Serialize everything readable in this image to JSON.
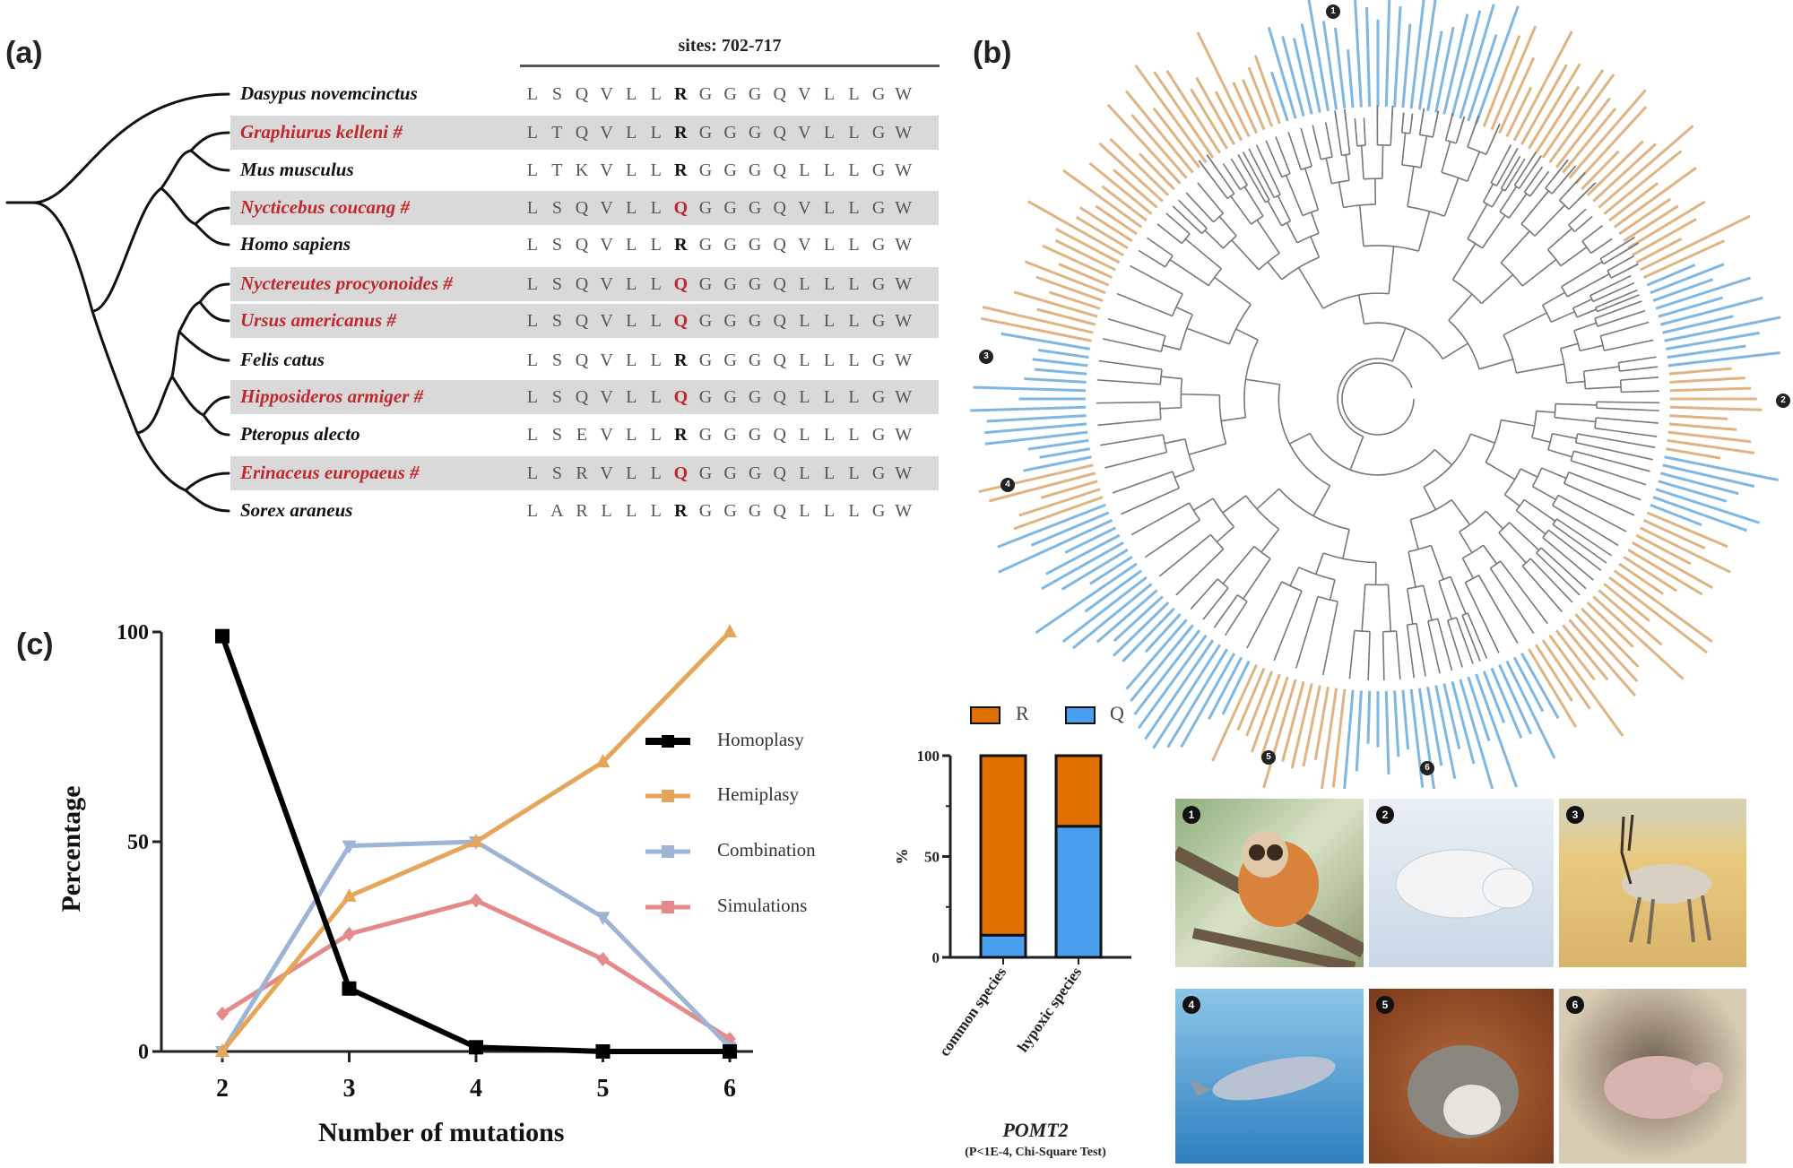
{
  "panels": {
    "a": "(a)",
    "b": "(b)",
    "c": "(c)"
  },
  "colors": {
    "highlight_text": "#c0282d",
    "row_bg": "#d9d9d9",
    "R": "#e07000",
    "Q": "#4a9ff0",
    "tree_R": "#dfb483",
    "tree_Q": "#7fb7e3",
    "homoplasy": "#000000",
    "hemiplasy": "#e6a65a",
    "combination": "#9db4d6",
    "simulations": "#e48a8a"
  },
  "alignment": {
    "sites_label": "sites: 702-717",
    "rows": [
      {
        "species": "Dasypus novemcinctus",
        "highlight": false,
        "seq": "LSQVLLRGGGQVLLGW"
      },
      {
        "species": "Graphiurus kelleni #",
        "highlight": true,
        "seq": "LTQVLLRGGGQVLLGW"
      },
      {
        "species": "Mus musculus",
        "highlight": false,
        "seq": "LTKVLLRGGGQLLLGW"
      },
      {
        "species": "Nycticebus coucang #",
        "highlight": true,
        "seq": "LSQVLLQGGGQVLLGW"
      },
      {
        "species": "Homo sapiens",
        "highlight": false,
        "seq": "LSQVLLRGGGQVLLGW"
      },
      {
        "species": "Nyctereutes procyonoides #",
        "highlight": true,
        "seq": "LSQVLLQGGGQLLLGW"
      },
      {
        "species": "Ursus americanus #",
        "highlight": true,
        "seq": "LSQVLLQGGGQLLLGW"
      },
      {
        "species": "Felis catus",
        "highlight": false,
        "seq": "LSQVLLRGGGQLLLGW"
      },
      {
        "species": "Hipposideros armiger #",
        "highlight": true,
        "seq": "LSQVLLQGGGQLLLGW"
      },
      {
        "species": "Pteropus alecto",
        "highlight": false,
        "seq": "LSEVLLRGGGQLLLGW"
      },
      {
        "species": "Erinaceus europaeus #",
        "highlight": true,
        "seq": "LSRVLLQGGGQLLLGW"
      },
      {
        "species": "Sorex araneus",
        "highlight": false,
        "seq": "LARLLLRGGGQLLLGW"
      }
    ],
    "key_position": 7
  },
  "circular_tree": {
    "legend": [
      {
        "label": "R",
        "color": "#e07000"
      },
      {
        "label": "Q",
        "color": "#4a9ff0"
      }
    ],
    "markers": [
      "1",
      "2",
      "3",
      "4",
      "5",
      "6"
    ]
  },
  "chart_data": [
    {
      "type": "line",
      "xlabel": "Number of mutations",
      "ylabel": "Percentage",
      "x": [
        2,
        3,
        4,
        5,
        6
      ],
      "xticks": [
        "2",
        "3",
        "4",
        "5",
        "6"
      ],
      "yticks": [
        "0",
        "50",
        "100"
      ],
      "ylim": [
        0,
        100
      ],
      "legend_position": "right",
      "series": [
        {
          "name": "Homoplasy",
          "values": [
            99,
            15,
            1,
            0,
            0
          ],
          "color": "#000000",
          "marker": "square"
        },
        {
          "name": "Hemiplasy",
          "values": [
            0,
            37,
            50,
            69,
            100
          ],
          "color": "#e6a65a",
          "marker": "triangle-up"
        },
        {
          "name": "Combination",
          "values": [
            0,
            49,
            50,
            32,
            1
          ],
          "color": "#9db4d6",
          "marker": "triangle-down"
        },
        {
          "name": "Simulations",
          "values": [
            9,
            28,
            36,
            22,
            3
          ],
          "color": "#e48a8a",
          "marker": "diamond"
        }
      ]
    },
    {
      "type": "bar",
      "stacked": true,
      "title": "POMT2",
      "subtitle": "(P<1E-4, Chi-Square Test)",
      "ylabel": "%",
      "categories": [
        "common species",
        "hypoxic species"
      ],
      "yticks": [
        "0",
        "50",
        "100"
      ],
      "ylim": [
        0,
        100
      ],
      "legend_position": "top",
      "series": [
        {
          "name": "Q",
          "values": [
            11,
            65
          ],
          "color": "#4a9ff0"
        },
        {
          "name": "R",
          "values": [
            89,
            35
          ],
          "color": "#e07000"
        }
      ]
    }
  ],
  "animals": [
    {
      "num": "1",
      "name": "slow loris"
    },
    {
      "num": "2",
      "name": "polar bear"
    },
    {
      "num": "3",
      "name": "Tibetan antelope"
    },
    {
      "num": "4",
      "name": "dolphin"
    },
    {
      "num": "5",
      "name": "hedgehog"
    },
    {
      "num": "6",
      "name": "naked mole-rat"
    }
  ]
}
